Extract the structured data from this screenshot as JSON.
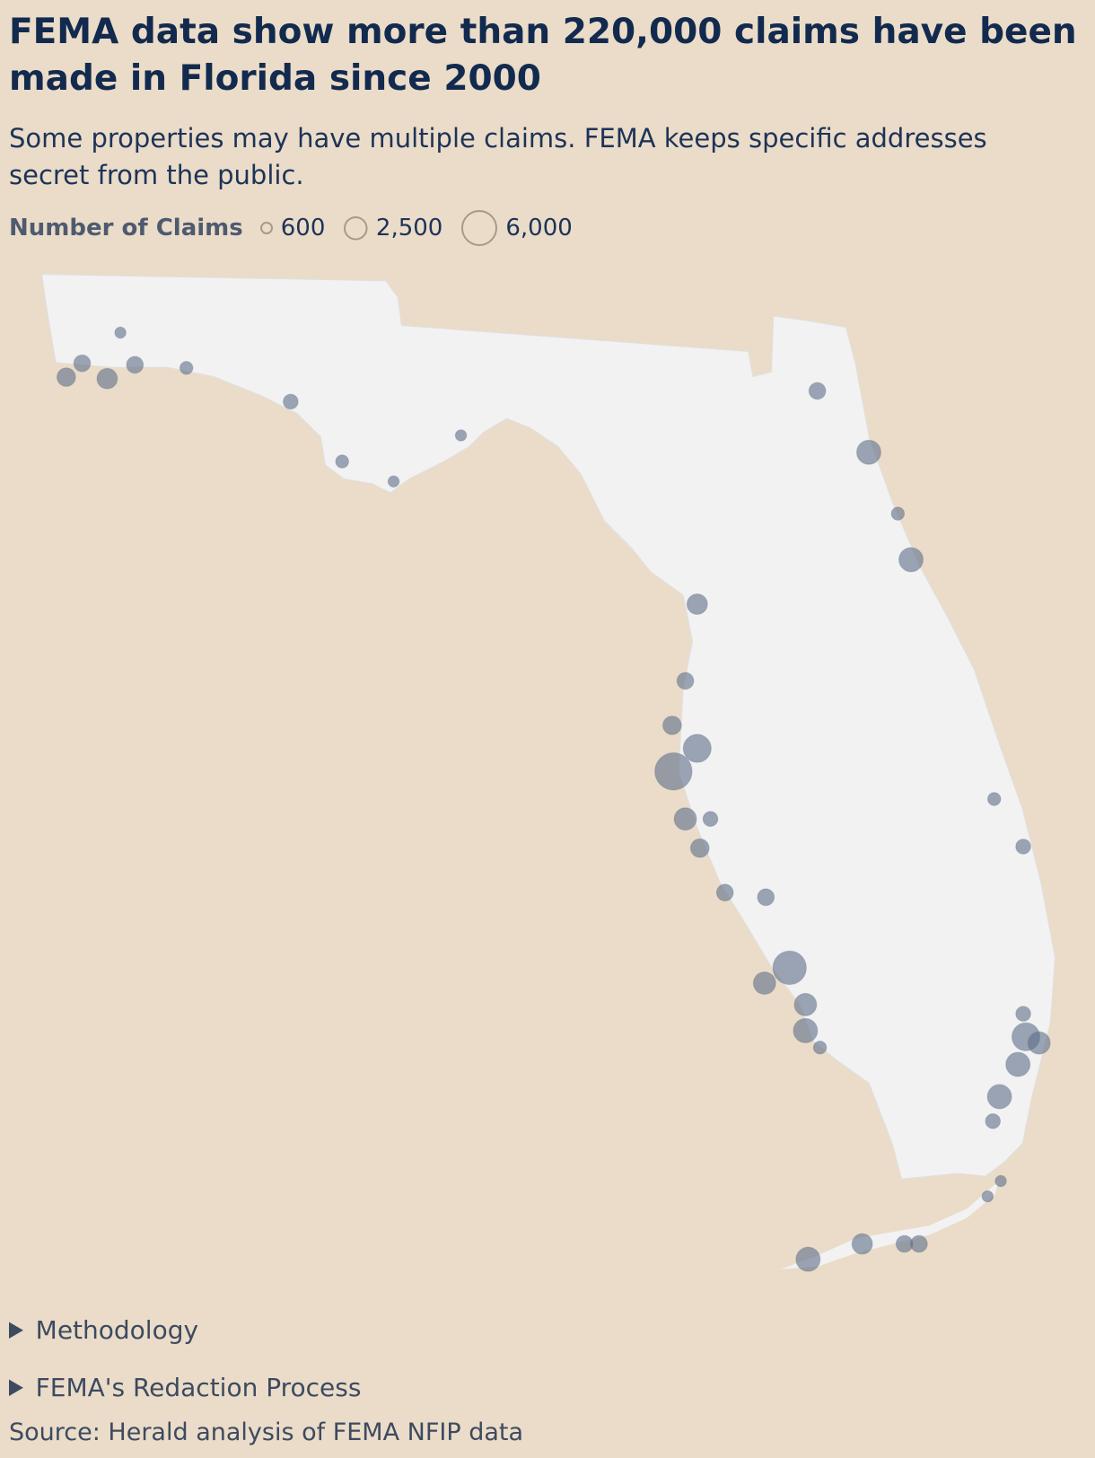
{
  "header": {
    "title": "FEMA data show more than 220,000 claims have been made in Florida since 2000",
    "subtitle": "Some properties may have multiple claims. FEMA keeps specific addresses secret from the public."
  },
  "chart_data": {
    "type": "bubble-map",
    "legend_title": "Number of Claims",
    "size_legend": [
      {
        "value": 600,
        "label": "600"
      },
      {
        "value": 2500,
        "label": "2,500"
      },
      {
        "value": 6000,
        "label": "6,000"
      }
    ],
    "color": "#5d6e88",
    "points": {
      "lon": [
        -87.45,
        -87.14,
        -87.33,
        -86.93,
        -85.75,
        -85.36,
        -84.97,
        -84.46,
        -81.76,
        -81.37,
        -81.05,
        -81.15,
        -82.67,
        -82.76,
        -82.86,
        -82.85,
        -82.67,
        -82.76,
        -82.65,
        -82.15,
        -81.97,
        -82.16,
        -81.85,
        -81.85,
        -81.74,
        -80.18,
        -80.08,
        -80.24,
        -80.38,
        -80.2,
        -80.42,
        -80.2,
        -81.83,
        -81.42,
        -81.1,
        -80.99,
        -80.47,
        -80.37,
        -87.04,
        -86.54,
        -82.46,
        -82.57,
        -80.43
      ],
      "lat": [
        30.33,
        30.32,
        30.42,
        30.41,
        30.17,
        29.78,
        29.65,
        29.95,
        30.24,
        29.84,
        29.14,
        29.44,
        28.85,
        28.35,
        28.06,
        27.76,
        27.91,
        27.45,
        27.26,
        26.94,
        26.48,
        26.38,
        26.24,
        26.07,
        25.96,
        26.03,
        25.99,
        25.85,
        25.64,
        26.18,
        27.58,
        27.27,
        24.58,
        24.68,
        24.68,
        24.68,
        24.99,
        25.09,
        30.62,
        30.39,
        26.97,
        27.45,
        25.48
      ],
      "claims": [
        1660,
        2010,
        1350,
        1350,
        1060,
        810,
        600,
        600,
        1350,
        2810,
        2810,
        810,
        2010,
        1350,
        1660,
        6650,
        3740,
        2390,
        1660,
        1350,
        5380,
        2390,
        2390,
        2810,
        810,
        3740,
        2390,
        2810,
        2810,
        1060,
        810,
        1060,
        2810,
        2010,
        1350,
        1350,
        600,
        600,
        600,
        810,
        1350,
        1060,
        1060
      ]
    }
  },
  "footer": {
    "sections": [
      "Methodology",
      "FEMA's Redaction Process"
    ],
    "source": "Source: Herald analysis of FEMA NFIP data"
  }
}
